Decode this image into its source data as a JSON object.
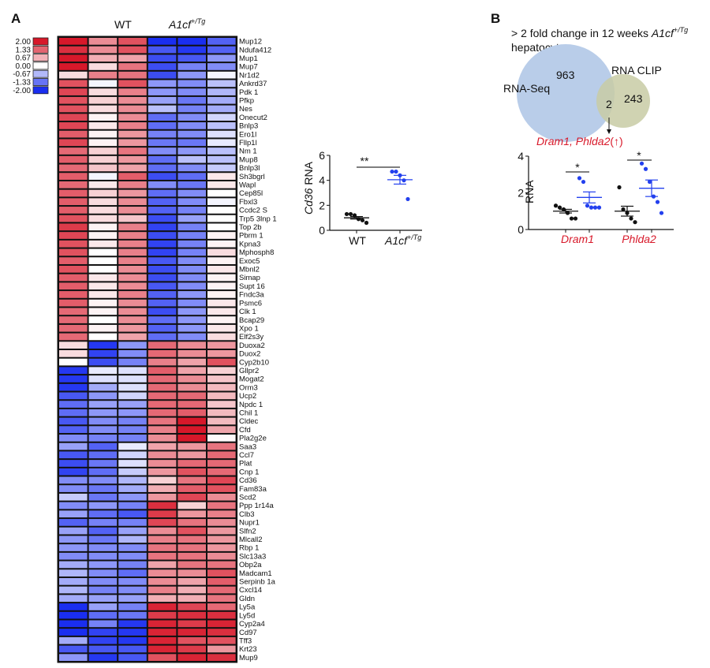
{
  "panel_a": {
    "label": "A",
    "col_groups": [
      {
        "label": "WT",
        "sup": ""
      },
      {
        "label": "A1cf",
        "sup": "+/Tg"
      }
    ],
    "legend": {
      "values": [
        "2.00",
        "1.33",
        "0.67",
        "0.00",
        "-0.67",
        "-1.33",
        "-2.00"
      ],
      "colors": {
        "low": "#1a2ef0",
        "mid": "#ffffff",
        "high": "#d7182a"
      }
    }
  },
  "cd36_chart": {
    "ylabel_gene": "Cd36",
    "ylabel_rest": " RNA",
    "sig": "**",
    "x_labels": [
      {
        "label": "WT",
        "sup": ""
      },
      {
        "label": "A1cf",
        "sup": "+/Tg"
      }
    ]
  },
  "panel_b": {
    "label": "B",
    "title_line1": "> 2 fold change in 12 weeks ",
    "title_gene": "A1cf",
    "title_sup": "+/Tg",
    "title_line2": "hepatocytes",
    "venn": {
      "left_label": "RNA-Seq",
      "right_label": "RNA CLIP",
      "left_only": "963",
      "overlap": "2",
      "right_only": "243",
      "left_color": "#b9cde9",
      "right_color": "#c8cba4"
    },
    "overlap_genes": "Dram1, Phlda2",
    "overlap_direction": "(↑)",
    "accent_color": "#d8192a"
  },
  "chart_data": [
    {
      "type": "heatmap",
      "title": "",
      "columns": [
        "WT",
        "WT",
        "WT",
        "A1cf+/Tg",
        "A1cf+/Tg",
        "A1cf+/Tg"
      ],
      "scale_range": [
        -2,
        2
      ],
      "rows": [
        "Mup12",
        "Ndufa412",
        "Mup1",
        "Mup7",
        "Nr1d2",
        "Ankrd37",
        "Pdk 1",
        "Pfkp",
        "Nes",
        "Onecut2",
        "Bnlp3",
        "Ero1l",
        "Fllp1l",
        "Nm 1",
        "Mup8",
        "Bnlp3l",
        "Sh3bgrl",
        "Wapl",
        "Cep85l",
        "Fbxl3",
        "Ccdc2 S",
        "Trp5 3lnp 1",
        "Top 2b",
        "Pbrm 1",
        "Kpna3",
        "Mphosph8",
        "Exoc5",
        "Mbnl2",
        "Simap",
        "Supt 16",
        "Fndc3a",
        "Psmc6",
        "Clk 1",
        "Bcap29",
        "Xpo 1",
        "Elf2s3y",
        "Duoxa2",
        "Duox2",
        "Cyp2b10",
        "Gllpr2",
        "Mogat2",
        "Orm3",
        "Ucp2",
        "Npdc 1",
        "Chil 1",
        "Cldec",
        "Cfd",
        "Pla2g2e",
        "Saa3",
        "Ccl7",
        "Plat",
        "Cnp 1",
        "Cd36",
        "Fam83a",
        "Scd2",
        "Ppp 1r14a",
        "Clb3",
        "Nupr1",
        "Slfn2",
        "Mlcall2",
        "Rbp 1",
        "Slc13a3",
        "Obp2a",
        "Madcam1",
        "Serpinb 1a",
        "Cxcl14",
        "Gldn",
        "Ly5a",
        "Ly5d",
        "Cyp2a4",
        "Cd97",
        "Tff3",
        "Krt23",
        "Mup9"
      ],
      "values": [
        [
          2,
          1.0,
          1.5,
          -2,
          -2,
          -1.5
        ],
        [
          1.8,
          1.0,
          1.5,
          -1.6,
          -1.9,
          -1.5
        ],
        [
          2,
          0.7,
          0.8,
          -1.7,
          -1.6,
          -1.0
        ],
        [
          2,
          0.3,
          1.2,
          -1.7,
          -1.2,
          -1.1
        ],
        [
          0.3,
          1.1,
          1.2,
          -1.7,
          -1.0,
          -0.1
        ],
        [
          1.5,
          -0.1,
          1.5,
          -1.0,
          -1.1,
          -0.6
        ],
        [
          1.6,
          0.3,
          1.1,
          -1.0,
          -1.1,
          -0.7
        ],
        [
          1.5,
          0.4,
          1.0,
          -0.9,
          -1.3,
          -0.8
        ],
        [
          1.5,
          0.3,
          1.0,
          -0.6,
          -1.2,
          -0.8
        ],
        [
          1.6,
          0.1,
          1.0,
          -1.4,
          -1.1,
          -0.4
        ],
        [
          1.6,
          0.2,
          1.1,
          -1.4,
          -1.1,
          -0.6
        ],
        [
          1.4,
          0.1,
          0.9,
          -1.2,
          -1.1,
          -0.3
        ],
        [
          1.6,
          0.1,
          0.9,
          -1.3,
          -1.3,
          -0.2
        ],
        [
          1.3,
          0.4,
          1.2,
          -1.1,
          -1.0,
          -0.6
        ],
        [
          1.4,
          0.4,
          0.9,
          -1.4,
          -0.6,
          -0.6
        ],
        [
          1.3,
          0.5,
          0.8,
          -1.4,
          -1.1,
          -0.5
        ],
        [
          1.4,
          -0.1,
          1.4,
          -1.7,
          -1.4,
          0.2
        ],
        [
          1.3,
          0.2,
          1.1,
          -1.1,
          -1.3,
          0.2
        ],
        [
          1.4,
          0.4,
          0.9,
          -1.4,
          -1.1,
          0.0
        ],
        [
          1.4,
          0.3,
          1.0,
          -1.5,
          -1.1,
          -0.1
        ],
        [
          1.4,
          0.3,
          1.0,
          -1.5,
          -1.2,
          0.0
        ],
        [
          1.5,
          0.3,
          0.5,
          -1.7,
          -0.9,
          0.0
        ],
        [
          1.7,
          0.1,
          1.1,
          -1.8,
          -1.2,
          0.0
        ],
        [
          1.6,
          0.1,
          1.1,
          -1.7,
          -1.2,
          0.1
        ],
        [
          1.5,
          0.2,
          1.1,
          -1.8,
          -1.2,
          0.1
        ],
        [
          1.5,
          0.0,
          1.1,
          -1.8,
          -1.2,
          0.3
        ],
        [
          1.4,
          0.0,
          1.1,
          -1.6,
          -1.1,
          0.1
        ],
        [
          1.5,
          0.0,
          1.0,
          -1.7,
          -1.1,
          0.2
        ],
        [
          1.4,
          0.2,
          1.0,
          -1.7,
          -1.1,
          0.1
        ],
        [
          1.4,
          0.2,
          1.0,
          -1.6,
          -1.1,
          0.1
        ],
        [
          1.4,
          0.2,
          1.1,
          -1.5,
          -1.0,
          0.1
        ],
        [
          1.4,
          0.1,
          1.0,
          -1.5,
          -1.1,
          0.2
        ],
        [
          1.3,
          0.1,
          1.0,
          -1.7,
          -1.0,
          0.2
        ],
        [
          1.3,
          0.0,
          1.0,
          -1.4,
          -1.0,
          0.1
        ],
        [
          1.3,
          0.1,
          0.9,
          -1.5,
          -1.0,
          0.2
        ],
        [
          1.3,
          0.0,
          0.8,
          -1.4,
          -1.1,
          0.3
        ],
        [
          0.3,
          -1.9,
          -1.0,
          1.3,
          1.0,
          0.9
        ],
        [
          0.3,
          -1.8,
          -1.1,
          1.3,
          1.0,
          0.9
        ],
        [
          0.0,
          -1.7,
          -1.2,
          1.1,
          0.8,
          1.5
        ],
        [
          -1.9,
          -0.2,
          -0.3,
          1.4,
          0.8,
          0.4
        ],
        [
          -1.9,
          -0.3,
          -0.3,
          1.3,
          1.0,
          0.5
        ],
        [
          -1.9,
          -0.8,
          -0.3,
          1.3,
          1.0,
          0.6
        ],
        [
          -1.6,
          -1.0,
          -0.4,
          1.3,
          1.3,
          0.6
        ],
        [
          -1.4,
          -0.9,
          -0.9,
          1.3,
          1.3,
          0.5
        ],
        [
          -1.4,
          -1.0,
          -1.0,
          1.3,
          1.4,
          0.6
        ],
        [
          -1.6,
          -1.1,
          -1.2,
          1.2,
          2.0,
          0.6
        ],
        [
          -1.5,
          -1.1,
          -1.2,
          1.1,
          2.0,
          0.8
        ],
        [
          -1.1,
          -1.2,
          -1.2,
          1.0,
          2.0,
          0.05
        ],
        [
          -0.9,
          -1.5,
          -0.2,
          0.8,
          0.9,
          1.2
        ],
        [
          -1.6,
          -1.4,
          -0.4,
          1.0,
          0.9,
          1.3
        ],
        [
          -1.7,
          -1.3,
          -0.3,
          1.0,
          1.3,
          1.3
        ],
        [
          -1.8,
          -1.4,
          -0.5,
          0.9,
          1.5,
          1.3
        ],
        [
          -1.1,
          -1.1,
          -0.7,
          0.4,
          1.2,
          1.6
        ],
        [
          -1.1,
          -1.3,
          -0.8,
          0.7,
          1.4,
          1.5
        ],
        [
          -0.5,
          -1.3,
          -1.0,
          0.9,
          1.6,
          1.0
        ],
        [
          -1.1,
          -1.0,
          -1.2,
          1.8,
          0.4,
          1.2
        ],
        [
          -0.9,
          -1.4,
          -1.6,
          1.7,
          0.9,
          1.1
        ],
        [
          -1.5,
          -1.2,
          -1.2,
          1.6,
          1.2,
          1.0
        ],
        [
          -0.9,
          -1.5,
          -0.9,
          1.0,
          1.5,
          0.9
        ],
        [
          -1.0,
          -1.3,
          -0.7,
          1.1,
          1.2,
          0.9
        ],
        [
          -1.0,
          -1.1,
          -1.1,
          1.2,
          1.2,
          0.9
        ],
        [
          -1.1,
          -1.1,
          -1.1,
          1.2,
          1.2,
          1.0
        ],
        [
          -0.8,
          -1.0,
          -1.2,
          0.8,
          1.2,
          1.2
        ],
        [
          -0.7,
          -1.1,
          -1.4,
          1.0,
          1.0,
          1.5
        ],
        [
          -0.8,
          -1.1,
          -1.1,
          1.0,
          0.8,
          1.4
        ],
        [
          -0.7,
          -1.2,
          -1.1,
          1.1,
          0.7,
          1.3
        ],
        [
          -0.8,
          -0.9,
          -0.9,
          0.7,
          0.7,
          1.2
        ],
        [
          -2.0,
          -0.9,
          -1.2,
          1.9,
          1.6,
          1.3
        ],
        [
          -2.0,
          -1.4,
          -1.3,
          1.7,
          1.8,
          1.8
        ],
        [
          -2.0,
          -1.2,
          -1.9,
          1.9,
          1.7,
          1.9
        ],
        [
          -2.0,
          -1.8,
          -1.9,
          1.9,
          1.9,
          1.8
        ],
        [
          -0.8,
          -1.8,
          -1.9,
          1.9,
          1.5,
          1.5
        ],
        [
          -1.6,
          -1.6,
          -1.6,
          1.9,
          1.7,
          0.9
        ],
        [
          -1.0,
          -1.9,
          -1.6,
          1.5,
          1.9,
          1.8
        ]
      ]
    },
    {
      "type": "scatter",
      "ylabel": "Cd36 RNA",
      "categories": [
        "WT",
        "A1cf+/Tg"
      ],
      "ylim": [
        0,
        6
      ],
      "yticks": [
        0,
        2,
        4,
        6
      ],
      "series": [
        {
          "values": [
            1.3,
            1.3,
            1.2,
            0.9,
            0.8,
            0.6
          ],
          "mean": 1.0,
          "sem": 0.1,
          "color": "#111111"
        },
        {
          "values": [
            4.7,
            4.7,
            4.4,
            4.0,
            2.5
          ],
          "mean": 4.05,
          "sem": 0.35,
          "color": "#2340ee"
        }
      ],
      "significance": [
        {
          "pair": [
            0,
            1
          ],
          "label": "**"
        }
      ]
    },
    {
      "type": "scatter",
      "ylabel": "RNA",
      "categories": [
        "Dram1",
        "Phlda2"
      ],
      "ylim": [
        0,
        4
      ],
      "yticks": [
        0,
        2,
        4
      ],
      "series": [
        {
          "group": "Dram1",
          "values": [
            1.3,
            1.2,
            1.1,
            0.9,
            0.6,
            0.6
          ],
          "mean": 1.0,
          "sem": 0.1,
          "color": "#111111"
        },
        {
          "group": "Dram1",
          "values": [
            2.8,
            2.6,
            1.3,
            1.2,
            1.2,
            1.2
          ],
          "mean": 1.75,
          "sem": 0.3,
          "color": "#2340ee"
        },
        {
          "group": "Phlda2",
          "values": [
            2.3,
            1.1,
            0.9,
            0.6,
            0.4
          ],
          "mean": 1.0,
          "sem": 0.27,
          "color": "#111111"
        },
        {
          "group": "Phlda2",
          "values": [
            3.6,
            3.3,
            2.6,
            1.8,
            1.5,
            0.9
          ],
          "mean": 2.25,
          "sem": 0.45,
          "color": "#2340ee"
        }
      ],
      "significance": [
        {
          "pair": [
            0,
            1
          ],
          "label": "*"
        },
        {
          "pair": [
            2,
            3
          ],
          "label": "*"
        }
      ]
    }
  ]
}
